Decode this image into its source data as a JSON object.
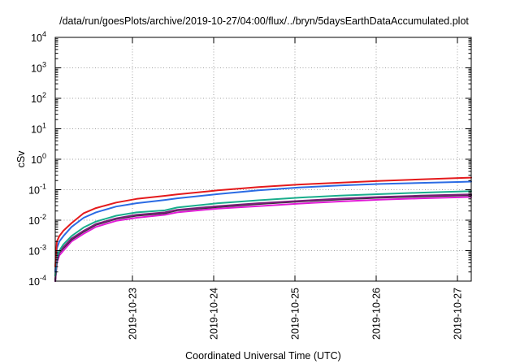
{
  "chart_data": {
    "type": "line",
    "title": "/data/run/goesPlots/archive/2019-10-27/04:00/flux/../bryn/5daysEarthDataAccumulated.plot",
    "xlabel": "Coordinated Universal Time (UTC)",
    "ylabel": "cSv",
    "yscale": "log",
    "ylim": [
      0.0001,
      10000
    ],
    "xlim": [
      0,
      5.12
    ],
    "x_ticks": [
      {
        "label": "2019-10-23",
        "value": 0.95
      },
      {
        "label": "2019-10-24",
        "value": 1.95
      },
      {
        "label": "2019-10-25",
        "value": 2.95
      },
      {
        "label": "2019-10-26",
        "value": 3.95
      },
      {
        "label": "2019-10-27",
        "value": 4.95
      }
    ],
    "y_ticks": [
      {
        "base": "10",
        "exp": "-4",
        "value": 0.0001
      },
      {
        "base": "10",
        "exp": "-3",
        "value": 0.001
      },
      {
        "base": "10",
        "exp": "-2",
        "value": 0.01
      },
      {
        "base": "10",
        "exp": "-1",
        "value": 0.1
      },
      {
        "base": "10",
        "exp": "0",
        "value": 1
      },
      {
        "base": "10",
        "exp": "1",
        "value": 10
      },
      {
        "base": "10",
        "exp": "2",
        "value": 100
      },
      {
        "base": "10",
        "exp": "3",
        "value": 1000
      },
      {
        "base": "10",
        "exp": "4",
        "value": 10000
      }
    ],
    "grid": true,
    "legend": "none",
    "x": [
      0.0,
      0.02,
      0.05,
      0.1,
      0.2,
      0.35,
      0.5,
      0.75,
      1.0,
      1.35,
      1.5,
      2.0,
      2.5,
      3.0,
      3.5,
      4.0,
      4.5,
      5.0,
      5.12
    ],
    "series": [
      {
        "color": "#e41a1c",
        "values": [
          0.0003,
          0.002,
          0.003,
          0.0045,
          0.008,
          0.017,
          0.025,
          0.038,
          0.05,
          0.063,
          0.07,
          0.095,
          0.122,
          0.148,
          0.17,
          0.195,
          0.218,
          0.244,
          0.25
        ]
      },
      {
        "color": "#2b6be4",
        "values": [
          0.0002,
          0.0012,
          0.002,
          0.003,
          0.006,
          0.012,
          0.018,
          0.028,
          0.036,
          0.046,
          0.052,
          0.072,
          0.095,
          0.118,
          0.138,
          0.155,
          0.168,
          0.18,
          0.185
        ]
      },
      {
        "color": "#1aad8c",
        "values": [
          0.00015,
          0.0006,
          0.001,
          0.0016,
          0.003,
          0.0058,
          0.009,
          0.014,
          0.018,
          0.021,
          0.026,
          0.036,
          0.045,
          0.055,
          0.064,
          0.072,
          0.08,
          0.088,
          0.09
        ]
      },
      {
        "color": "#7a1f7a",
        "values": [
          0.0001,
          0.0005,
          0.0009,
          0.0013,
          0.0025,
          0.0045,
          0.0075,
          0.0115,
          0.015,
          0.018,
          0.022,
          0.029,
          0.036,
          0.043,
          0.051,
          0.058,
          0.064,
          0.069,
          0.07
        ]
      },
      {
        "color": "#333333",
        "values": [
          0.0001,
          0.00045,
          0.00085,
          0.0012,
          0.0023,
          0.0042,
          0.007,
          0.011,
          0.014,
          0.017,
          0.021,
          0.027,
          0.034,
          0.041,
          0.048,
          0.055,
          0.06,
          0.065,
          0.066
        ]
      },
      {
        "color": "#e11ad6",
        "values": [
          0.0001,
          0.0004,
          0.0007,
          0.001,
          0.002,
          0.0036,
          0.006,
          0.0095,
          0.012,
          0.015,
          0.018,
          0.024,
          0.029,
          0.035,
          0.041,
          0.047,
          0.052,
          0.057,
          0.058
        ]
      }
    ]
  }
}
